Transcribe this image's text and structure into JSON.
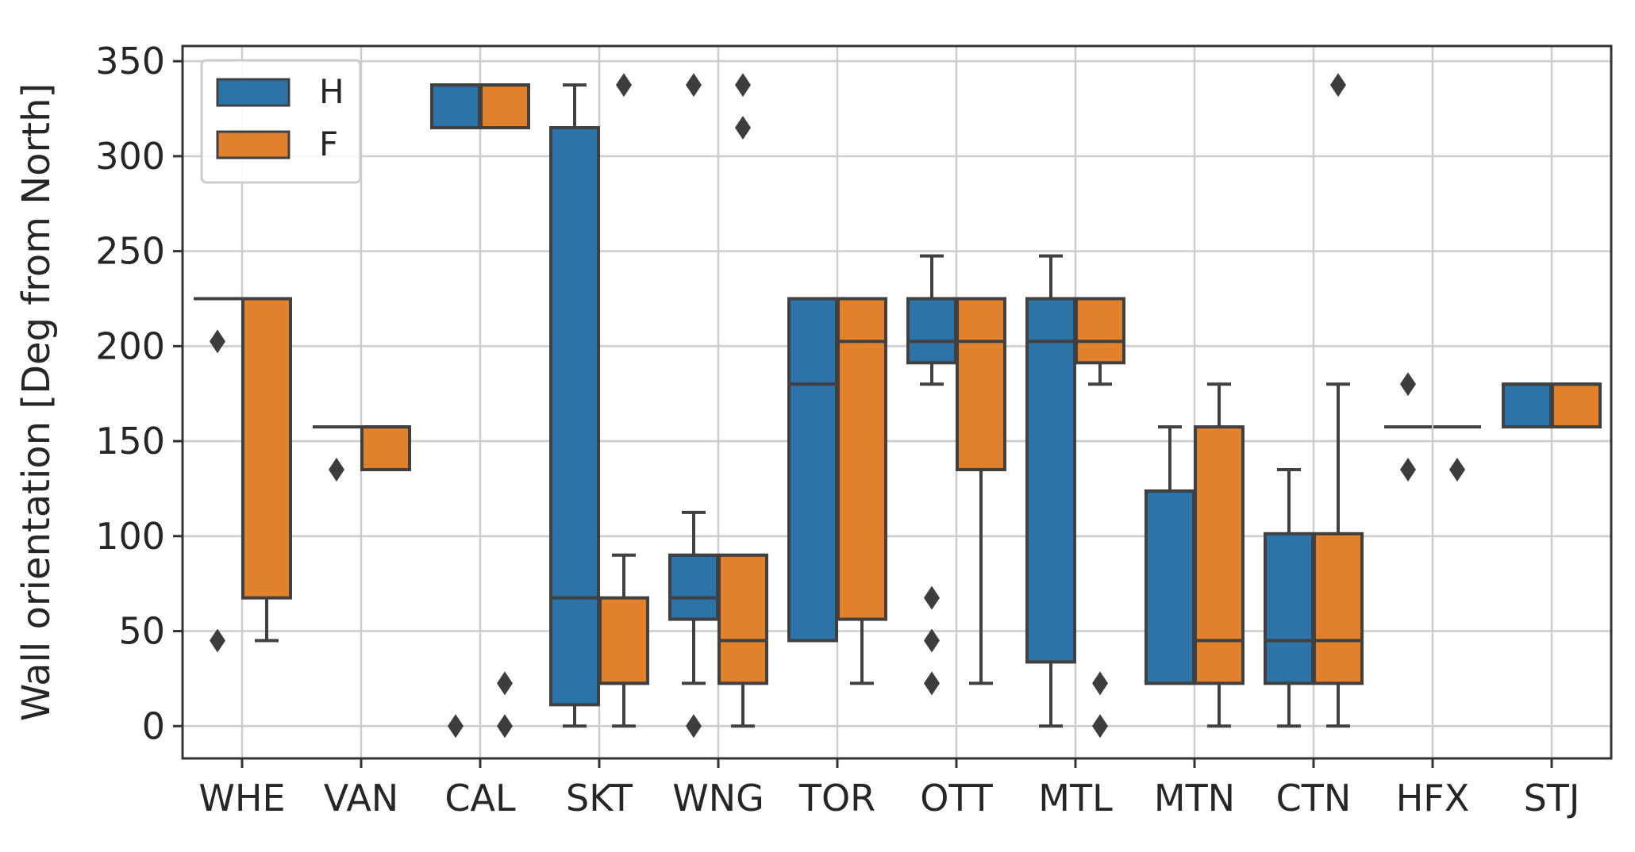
{
  "chart_data": {
    "type": "boxplot",
    "title": "",
    "xlabel": "",
    "ylabel": "Wall orientation [Deg from North]",
    "ylim": [
      -17,
      358
    ],
    "yticks": [
      0,
      50,
      100,
      150,
      200,
      250,
      300,
      350
    ],
    "grid": true,
    "legend_position": "top-left",
    "categories": [
      "WHE",
      "VAN",
      "CAL",
      "SKT",
      "WNG",
      "TOR",
      "OTT",
      "MTL",
      "MTN",
      "CTN",
      "HFX",
      "STJ"
    ],
    "series": [
      {
        "name": "H",
        "color": "#2c73a8",
        "boxes": [
          {
            "q1": 225,
            "median": 225,
            "q3": 225,
            "whisker_low": 225,
            "whisker_high": 225,
            "outliers": [
              202.5,
              45
            ]
          },
          {
            "q1": 157.5,
            "median": 157.5,
            "q3": 157.5,
            "whisker_low": 157.5,
            "whisker_high": 157.5,
            "outliers": [
              135
            ]
          },
          {
            "q1": 315,
            "median": 337.5,
            "q3": 337.5,
            "whisker_low": 315,
            "whisker_high": 337.5,
            "outliers": [
              0
            ]
          },
          {
            "q1": 11.25,
            "median": 67.5,
            "q3": 315,
            "whisker_low": 0,
            "whisker_high": 337.5,
            "outliers": []
          },
          {
            "q1": 56.25,
            "median": 67.5,
            "q3": 90,
            "whisker_low": 22.5,
            "whisker_high": 112.5,
            "outliers": [
              337.5,
              0
            ]
          },
          {
            "q1": 45,
            "median": 180,
            "q3": 225,
            "whisker_low": 45,
            "whisker_high": 225,
            "outliers": []
          },
          {
            "q1": 191.25,
            "median": 202.5,
            "q3": 225,
            "whisker_low": 180,
            "whisker_high": 247.5,
            "outliers": [
              67.5,
              45,
              22.5
            ]
          },
          {
            "q1": 33.75,
            "median": 202.5,
            "q3": 225,
            "whisker_low": 0,
            "whisker_high": 247.5,
            "outliers": []
          },
          {
            "q1": 22.5,
            "median": 22.5,
            "q3": 123.75,
            "whisker_low": 22.5,
            "whisker_high": 157.5,
            "outliers": []
          },
          {
            "q1": 22.5,
            "median": 45,
            "q3": 101.25,
            "whisker_low": 0,
            "whisker_high": 135,
            "outliers": []
          },
          {
            "q1": 157.5,
            "median": 157.5,
            "q3": 157.5,
            "whisker_low": 157.5,
            "whisker_high": 157.5,
            "outliers": [
              180,
              135
            ]
          },
          {
            "q1": 157.5,
            "median": 180,
            "q3": 180,
            "whisker_low": 157.5,
            "whisker_high": 180,
            "outliers": []
          }
        ]
      },
      {
        "name": "F",
        "color": "#e1812c",
        "boxes": [
          {
            "q1": 67.5,
            "median": 225,
            "q3": 225,
            "whisker_low": 45,
            "whisker_high": 225,
            "outliers": []
          },
          {
            "q1": 135,
            "median": 157.5,
            "q3": 157.5,
            "whisker_low": 135,
            "whisker_high": 157.5,
            "outliers": []
          },
          {
            "q1": 315,
            "median": 337.5,
            "q3": 337.5,
            "whisker_low": 315,
            "whisker_high": 337.5,
            "outliers": [
              22.5,
              0
            ]
          },
          {
            "q1": 22.5,
            "median": 22.5,
            "q3": 67.5,
            "whisker_low": 0,
            "whisker_high": 90,
            "outliers": [
              337.5
            ]
          },
          {
            "q1": 22.5,
            "median": 45,
            "q3": 90,
            "whisker_low": 0,
            "whisker_high": 90,
            "outliers": [
              337.5,
              315
            ]
          },
          {
            "q1": 56.25,
            "median": 202.5,
            "q3": 225,
            "whisker_low": 22.5,
            "whisker_high": 225,
            "outliers": []
          },
          {
            "q1": 135,
            "median": 202.5,
            "q3": 225,
            "whisker_low": 22.5,
            "whisker_high": 225,
            "outliers": []
          },
          {
            "q1": 191.25,
            "median": 202.5,
            "q3": 225,
            "whisker_low": 180,
            "whisker_high": 225,
            "outliers": [
              22.5,
              0
            ]
          },
          {
            "q1": 22.5,
            "median": 45,
            "q3": 157.5,
            "whisker_low": 0,
            "whisker_high": 180,
            "outliers": []
          },
          {
            "q1": 22.5,
            "median": 45,
            "q3": 101.25,
            "whisker_low": 0,
            "whisker_high": 180,
            "outliers": [
              337.5
            ]
          },
          {
            "q1": 157.5,
            "median": 157.5,
            "q3": 157.5,
            "whisker_low": 157.5,
            "whisker_high": 157.5,
            "outliers": [
              135
            ]
          },
          {
            "q1": 157.5,
            "median": 180,
            "q3": 180,
            "whisker_low": 157.5,
            "whisker_high": 180,
            "outliers": []
          }
        ]
      }
    ]
  }
}
